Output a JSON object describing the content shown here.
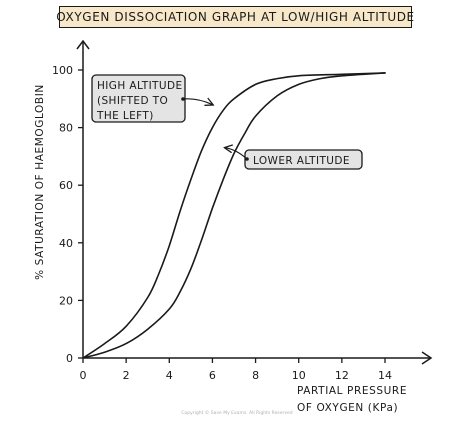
{
  "chart_data": {
    "type": "line",
    "title": "OXYGEN DISSOCIATION GRAPH AT LOW/HIGH ALTITUDE",
    "xlabel_line1": "PARTIAL PRESSURE",
    "xlabel_line2": "OF OXYGEN (KPa)",
    "ylabel": "% SATURATION OF HAEMOGLOBIN",
    "xlim": [
      0,
      14
    ],
    "ylim": [
      0,
      100
    ],
    "xticks": [
      0,
      2,
      4,
      6,
      8,
      10,
      12,
      14
    ],
    "yticks": [
      0,
      20,
      40,
      60,
      80,
      100
    ],
    "grid": false,
    "series": [
      {
        "name": "HIGH ALTITUDE (SHIFTED TO THE LEFT)",
        "x": [
          0,
          1,
          2,
          3,
          3.5,
          4,
          4.5,
          5,
          5.5,
          6,
          6.5,
          7,
          8,
          9,
          10,
          12,
          14
        ],
        "y": [
          0,
          5,
          11,
          21,
          29,
          39,
          51,
          62,
          72,
          80,
          86,
          90,
          95,
          97,
          98,
          98.5,
          99
        ]
      },
      {
        "name": "LOWER ALTITUDE",
        "x": [
          0,
          1,
          2,
          3,
          4,
          4.5,
          5,
          5.5,
          6,
          6.5,
          7,
          7.5,
          8,
          9,
          10,
          11,
          12,
          14
        ],
        "y": [
          0,
          2,
          5,
          10,
          17,
          23,
          31,
          41,
          52,
          62,
          71,
          78,
          84,
          91,
          95,
          97,
          98,
          99
        ]
      }
    ],
    "annotations": [
      {
        "series": "HIGH ALTITUDE (SHIFTED TO THE LEFT)",
        "lines": [
          "HIGH ALTITUDE",
          "(SHIFTED TO",
          "THE LEFT)"
        ],
        "arrow_to": {
          "x": 6.0,
          "y": 88
        }
      },
      {
        "series": "LOWER ALTITUDE",
        "lines": [
          "LOWER ALTITUDE"
        ],
        "arrow_to": {
          "x": 6.6,
          "y": 73
        }
      }
    ],
    "colors": {
      "title_fill": "#f6e8c8",
      "annotation_fill": "#e4e4e4",
      "ink": "#1a1a1a"
    }
  },
  "footer": {
    "copyright": "Copyright © Save My Exams. All Rights Reserved"
  }
}
